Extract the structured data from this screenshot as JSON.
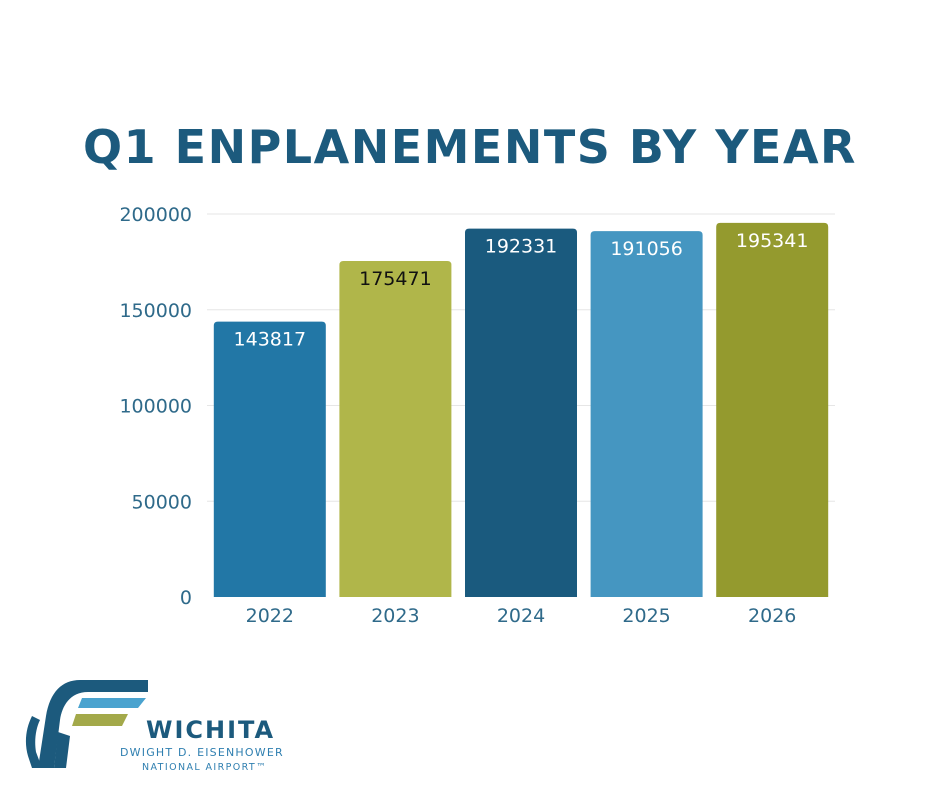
{
  "chart_data": {
    "type": "bar",
    "title": "Q1 ENPLANEMENTS BY YEAR",
    "xlabel": "",
    "ylabel": "",
    "categories": [
      "2022",
      "2023",
      "2024",
      "2025",
      "2026"
    ],
    "values": [
      143817,
      175471,
      192331,
      191056,
      195341
    ],
    "bar_colors": [
      "#2277a6",
      "#b0b64a",
      "#1a5a7e",
      "#4596c1",
      "#949a2e"
    ],
    "label_colors": [
      "#ffffff",
      "#111111",
      "#ffffff",
      "#ffffff",
      "#ffffff"
    ],
    "ylim": [
      0,
      200000
    ],
    "yticks": [
      0,
      50000,
      100000,
      150000,
      200000
    ],
    "grid": true,
    "legend": "none"
  },
  "logo": {
    "name": "WICHITA",
    "line1": "DWIGHT D. EISENHOWER",
    "line2": "NATIONAL AIRPORT™",
    "colors": {
      "navy": "#1c5a7d",
      "light_blue": "#4aa3cf",
      "olive": "#a3a94a"
    }
  },
  "colors": {
    "title": "#1c5a7d",
    "tick": "#2f6a8a",
    "grid": "#e6e6e6"
  }
}
